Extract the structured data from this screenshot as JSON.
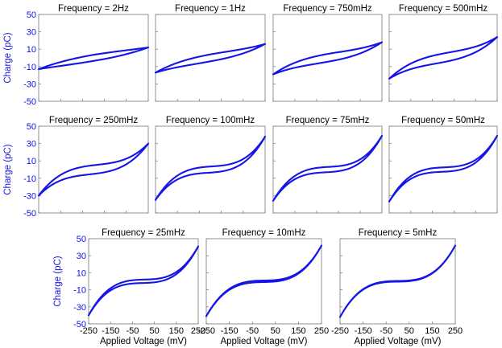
{
  "chart_data": {
    "type": "line",
    "series_color": "#1515e6",
    "ylabel": "Charge (pC)",
    "xlabel": "Applied Voltage (mV)",
    "ylim": [
      -50,
      50
    ],
    "xlim": [
      -250,
      250
    ],
    "y_ticks": [
      "50",
      "30",
      "10",
      "-10",
      "-30",
      "-50"
    ],
    "x_ticks": [
      "-250",
      "-150",
      "-50",
      "50",
      "150",
      "250"
    ],
    "panels": [
      {
        "title": "Frequency = 2Hz",
        "q_at_min": -13,
        "q_at_max": 12,
        "cubic": 0.15,
        "loop_width": 3.5
      },
      {
        "title": "Frequency = 1Hz",
        "q_at_min": -17,
        "q_at_max": 16,
        "cubic": 0.3,
        "loop_width": 4
      },
      {
        "title": "Frequency = 750mHz",
        "q_at_min": -19,
        "q_at_max": 18,
        "cubic": 0.4,
        "loop_width": 4.5
      },
      {
        "title": "Frequency = 500mHz",
        "q_at_min": -24,
        "q_at_max": 24,
        "cubic": 0.5,
        "loop_width": 5
      },
      {
        "title": "Frequency = 250mHz",
        "q_at_min": -30,
        "q_at_max": 30,
        "cubic": 0.75,
        "loop_width": 5
      },
      {
        "title": "Frequency = 100mHz",
        "q_at_min": -35,
        "q_at_max": 38,
        "cubic": 0.88,
        "loop_width": 3.5
      },
      {
        "title": "Frequency = 75mHz",
        "q_at_min": -36,
        "q_at_max": 39,
        "cubic": 0.9,
        "loop_width": 3
      },
      {
        "title": "Frequency = 50mHz",
        "q_at_min": -37,
        "q_at_max": 39,
        "cubic": 0.92,
        "loop_width": 2.5
      },
      {
        "title": "Frequency = 25mHz",
        "q_at_min": -40,
        "q_at_max": 41,
        "cubic": 0.95,
        "loop_width": 2
      },
      {
        "title": "Frequency = 10mHz",
        "q_at_min": -41,
        "q_at_max": 42,
        "cubic": 0.96,
        "loop_width": 0.9
      },
      {
        "title": "Frequency = 5mHz",
        "q_at_min": -42,
        "q_at_max": 42,
        "cubic": 0.97,
        "loop_width": 0.4
      }
    ]
  }
}
